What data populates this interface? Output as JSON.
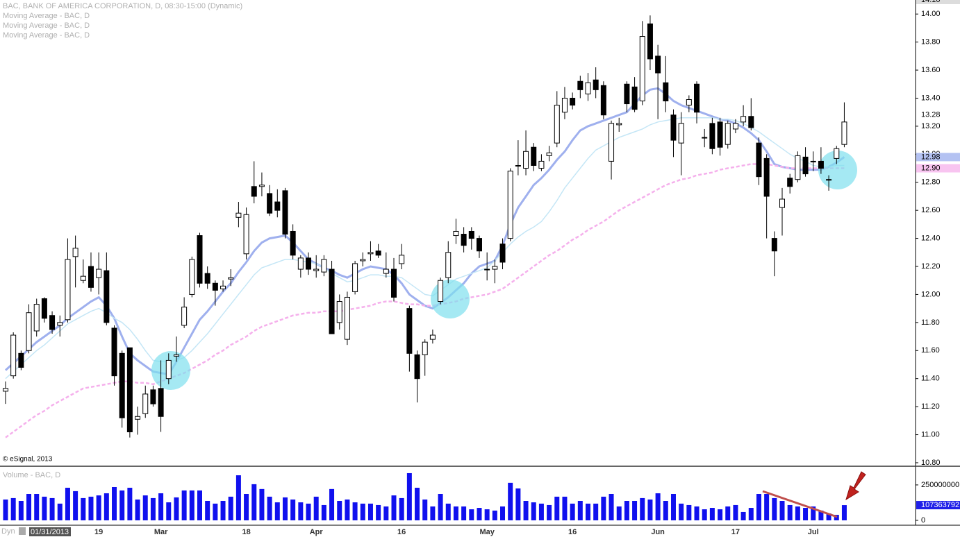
{
  "chart_data": [
    {
      "type": "candlestick",
      "title": "BAC, BANK OF AMERICA CORPORATION, D, 08:30-15:00 (Dynamic)",
      "source": "© eSignal, 2013",
      "x_prefix": "Dyn",
      "categories": [
        "01/31/2013",
        null,
        null,
        null,
        null,
        null,
        null,
        null,
        null,
        null,
        null,
        null,
        "19",
        null,
        null,
        null,
        null,
        null,
        null,
        null,
        "Mar",
        null,
        null,
        null,
        null,
        null,
        null,
        null,
        null,
        null,
        null,
        "18",
        null,
        null,
        null,
        null,
        null,
        null,
        null,
        null,
        "Apr",
        null,
        null,
        null,
        null,
        null,
        null,
        null,
        null,
        null,
        null,
        "16",
        null,
        null,
        null,
        null,
        null,
        null,
        null,
        null,
        null,
        null,
        "May",
        null,
        null,
        null,
        null,
        null,
        null,
        null,
        null,
        null,
        null,
        "16",
        null,
        null,
        null,
        null,
        null,
        null,
        null,
        null,
        null,
        null,
        "Jun",
        null,
        null,
        null,
        null,
        null,
        null,
        null,
        null,
        null,
        "17",
        null,
        null,
        null,
        null,
        null,
        null,
        null,
        null,
        null,
        "Jul",
        null,
        null,
        null,
        null
      ],
      "open": [
        11.31,
        11.42,
        11.58,
        11.6,
        11.74,
        11.97,
        11.85,
        11.78,
        11.82,
        12.27,
        12.1,
        12.2,
        12.12,
        12.17,
        11.76,
        11.58,
        11.62,
        11.11,
        11.15,
        11.32,
        11.33,
        11.4,
        11.56,
        11.78,
        12.0,
        12.42,
        12.15,
        12.08,
        12.04,
        12.11,
        12.55,
        12.29,
        12.77,
        12.77,
        12.72,
        12.66,
        12.74,
        12.45,
        12.18,
        12.26,
        12.17,
        12.16,
        12.18,
        11.8,
        11.68,
        12.02,
        12.24,
        12.29,
        12.31,
        12.15,
        12.18,
        12.22,
        11.9,
        11.57,
        11.57,
        11.68,
        11.95,
        12.12,
        12.42,
        12.43,
        12.45,
        12.4,
        12.18,
        12.18,
        12.36,
        12.4,
        12.92,
        12.9,
        13.05,
        12.9,
        12.99,
        13.08,
        13.3,
        13.4,
        13.52,
        13.43,
        13.53,
        13.49,
        12.95,
        13.21,
        13.5,
        13.48,
        13.38,
        13.93,
        13.7,
        13.51,
        13.28,
        13.08,
        13.35,
        13.5,
        13.12,
        13.22,
        13.23,
        13.07,
        13.18,
        13.23,
        13.27,
        13.08,
        12.97,
        12.4,
        12.62,
        12.83,
        12.82,
        12.98,
        12.95,
        12.95,
        12.82,
        12.97,
        13.07
      ],
      "high": [
        11.38,
        11.73,
        11.6,
        11.93,
        11.97,
        11.98,
        11.88,
        11.85,
        12.4,
        12.42,
        12.25,
        12.3,
        12.3,
        12.3,
        11.78,
        11.6,
        11.62,
        11.2,
        11.35,
        11.35,
        11.53,
        11.58,
        11.7,
        11.98,
        12.27,
        12.44,
        12.2,
        12.1,
        12.1,
        12.18,
        12.66,
        12.62,
        12.95,
        12.87,
        12.78,
        12.75,
        12.76,
        12.5,
        12.28,
        12.3,
        12.28,
        12.28,
        12.24,
        12.0,
        12.02,
        12.24,
        12.3,
        12.38,
        12.36,
        12.3,
        12.26,
        12.36,
        11.92,
        11.6,
        11.68,
        11.75,
        12.12,
        12.38,
        12.54,
        12.48,
        12.48,
        12.42,
        12.3,
        12.25,
        12.4,
        12.9,
        13.1,
        13.17,
        13.08,
        13.0,
        13.06,
        13.45,
        13.48,
        13.44,
        13.56,
        13.58,
        13.62,
        13.52,
        13.24,
        13.26,
        13.52,
        13.55,
        13.95,
        13.99,
        13.78,
        13.7,
        13.32,
        13.3,
        13.42,
        13.52,
        13.18,
        13.26,
        13.26,
        13.24,
        13.25,
        13.35,
        13.4,
        13.12,
        13.0,
        12.45,
        12.76,
        12.86,
        13.02,
        13.05,
        13.02,
        13.05,
        12.85,
        13.06,
        13.37
      ],
      "low": [
        11.22,
        11.4,
        11.46,
        11.58,
        11.7,
        11.8,
        11.72,
        11.7,
        11.8,
        12.05,
        12.08,
        12.02,
        12.0,
        11.78,
        11.35,
        11.05,
        10.98,
        11.0,
        11.12,
        11.2,
        11.02,
        11.36,
        11.52,
        11.76,
        11.98,
        12.05,
        12.04,
        11.92,
        12.02,
        12.06,
        12.48,
        12.25,
        12.65,
        12.7,
        12.56,
        12.55,
        12.4,
        12.25,
        12.12,
        12.14,
        12.12,
        12.13,
        11.72,
        11.75,
        11.64,
        12.0,
        12.2,
        12.24,
        12.26,
        12.12,
        11.95,
        12.18,
        11.45,
        11.23,
        11.42,
        11.65,
        11.93,
        12.08,
        12.36,
        12.3,
        12.32,
        12.26,
        12.1,
        12.08,
        12.18,
        12.38,
        12.85,
        12.85,
        12.88,
        12.88,
        12.95,
        13.05,
        13.25,
        13.32,
        13.4,
        13.38,
        13.4,
        13.25,
        12.82,
        13.16,
        13.3,
        13.3,
        13.35,
        13.6,
        13.25,
        13.3,
        12.98,
        12.85,
        13.3,
        13.22,
        13.05,
        13.0,
        12.99,
        13.04,
        13.15,
        13.2,
        13.17,
        12.78,
        12.4,
        12.13,
        12.42,
        12.72,
        12.8,
        12.84,
        12.88,
        12.86,
        12.74,
        12.93,
        13.05
      ],
      "close": [
        11.33,
        11.71,
        11.48,
        11.87,
        11.93,
        11.83,
        11.75,
        11.8,
        12.25,
        12.33,
        12.13,
        12.05,
        12.18,
        11.8,
        11.42,
        11.12,
        11.02,
        11.13,
        11.29,
        11.22,
        11.13,
        11.53,
        11.57,
        11.91,
        12.25,
        12.08,
        12.08,
        12.03,
        12.06,
        12.12,
        12.58,
        12.57,
        12.7,
        12.78,
        12.58,
        12.6,
        12.43,
        12.28,
        12.26,
        12.18,
        12.18,
        12.25,
        11.72,
        11.95,
        11.98,
        12.22,
        12.25,
        12.3,
        12.28,
        12.18,
        11.98,
        12.28,
        11.58,
        11.4,
        11.66,
        11.71,
        12.1,
        12.3,
        12.45,
        12.35,
        12.4,
        12.31,
        12.18,
        12.2,
        12.23,
        12.88,
        12.92,
        13.02,
        12.92,
        12.95,
        13.01,
        13.35,
        13.4,
        13.35,
        13.46,
        13.51,
        13.46,
        13.28,
        13.22,
        13.22,
        13.36,
        13.32,
        13.84,
        13.68,
        13.58,
        13.38,
        13.1,
        13.22,
        13.39,
        13.3,
        13.12,
        13.04,
        13.05,
        13.22,
        13.22,
        13.27,
        13.19,
        12.84,
        12.7,
        12.31,
        12.68,
        12.77,
        12.99,
        12.86,
        12.95,
        12.9,
        12.82,
        13.04,
        13.23
      ],
      "color_up": "#ffffff",
      "color_down": "#000000",
      "series": [
        {
          "name": "Moving Average - BAC, D",
          "color": "#9fb0ee",
          "values": [
            11.46,
            11.51,
            11.56,
            11.61,
            11.66,
            11.7,
            11.74,
            11.78,
            11.83,
            11.87,
            11.91,
            11.95,
            11.98,
            11.92,
            11.83,
            11.7,
            11.58,
            11.53,
            11.49,
            11.45,
            11.44,
            11.43,
            11.52,
            11.62,
            11.72,
            11.82,
            11.88,
            11.95,
            12.02,
            12.08,
            12.16,
            12.23,
            12.31,
            12.37,
            12.4,
            12.41,
            12.42,
            12.37,
            12.31,
            12.25,
            12.22,
            12.19,
            12.17,
            12.14,
            12.12,
            12.15,
            12.18,
            12.2,
            12.19,
            12.18,
            12.14,
            12.08,
            12.0,
            11.96,
            11.92,
            11.9,
            11.94,
            11.98,
            12.03,
            12.08,
            12.15,
            12.2,
            12.22,
            12.24,
            12.35,
            12.5,
            12.62,
            12.7,
            12.78,
            12.83,
            12.89,
            12.96,
            13.02,
            13.1,
            13.17,
            13.2,
            13.22,
            13.24,
            13.26,
            13.28,
            13.3,
            13.36,
            13.42,
            13.46,
            13.47,
            13.43,
            13.38,
            13.35,
            13.33,
            13.31,
            13.29,
            13.27,
            13.25,
            13.24,
            13.22,
            13.19,
            13.15,
            13.1,
            13.02,
            12.93,
            12.91,
            12.9,
            12.89,
            12.89,
            12.89,
            12.89,
            12.91,
            12.94,
            12.98
          ]
        },
        {
          "name": "Moving Average - BAC, D",
          "color": "#c4e6f6",
          "values": [
            11.4,
            11.45,
            11.5,
            11.55,
            11.6,
            11.64,
            11.69,
            11.74,
            11.79,
            11.82,
            11.85,
            11.88,
            11.9,
            11.87,
            11.83,
            11.8,
            11.75,
            11.68,
            11.6,
            11.53,
            11.52,
            11.52,
            11.53,
            11.55,
            11.6,
            11.66,
            11.72,
            11.79,
            11.86,
            11.93,
            12.0,
            12.07,
            12.14,
            12.19,
            12.21,
            12.23,
            12.25,
            12.25,
            12.24,
            12.23,
            12.22,
            12.19,
            12.15,
            12.12,
            12.09,
            12.1,
            12.12,
            12.14,
            12.14,
            12.13,
            12.13,
            12.12,
            12.08,
            12.04,
            12.0,
            11.99,
            12.03,
            12.07,
            12.11,
            12.13,
            12.15,
            12.17,
            12.19,
            12.24,
            12.3,
            12.36,
            12.41,
            12.45,
            12.48,
            12.52,
            12.59,
            12.67,
            12.76,
            12.83,
            12.9,
            12.97,
            13.03,
            13.06,
            13.09,
            13.12,
            13.14,
            13.16,
            13.18,
            13.21,
            13.23,
            13.24,
            13.25,
            13.26,
            13.26,
            13.26,
            13.26,
            13.26,
            13.25,
            13.25,
            13.24,
            13.22,
            13.19,
            13.16,
            13.12,
            13.08,
            13.04,
            13.0,
            12.97,
            12.95,
            12.92,
            12.91,
            12.91,
            12.92,
            12.92
          ]
        },
        {
          "name": "Moving Average - BAC, D",
          "color": "#f5b0ec",
          "dashed": true,
          "values": [
            10.98,
            11.02,
            11.06,
            11.1,
            11.14,
            11.17,
            11.21,
            11.24,
            11.27,
            11.3,
            11.33,
            11.34,
            11.35,
            11.36,
            11.37,
            11.38,
            11.38,
            11.37,
            11.37,
            11.36,
            11.38,
            11.4,
            11.42,
            11.44,
            11.47,
            11.5,
            11.53,
            11.57,
            11.6,
            11.64,
            11.67,
            11.7,
            11.74,
            11.77,
            11.79,
            11.81,
            11.83,
            11.85,
            11.86,
            11.87,
            11.87,
            11.88,
            11.88,
            11.88,
            11.89,
            11.9,
            11.91,
            11.92,
            11.94,
            11.95,
            11.95,
            11.94,
            11.93,
            11.93,
            11.92,
            11.92,
            11.93,
            11.94,
            11.95,
            11.97,
            11.98,
            11.99,
            12.0,
            12.02,
            12.04,
            12.08,
            12.12,
            12.16,
            12.2,
            12.24,
            12.28,
            12.31,
            12.35,
            12.39,
            12.42,
            12.46,
            12.49,
            12.52,
            12.56,
            12.6,
            12.63,
            12.66,
            12.69,
            12.72,
            12.75,
            12.78,
            12.8,
            12.82,
            12.83,
            12.85,
            12.86,
            12.87,
            12.89,
            12.9,
            12.91,
            12.92,
            12.93,
            12.93,
            12.93,
            12.92,
            12.91,
            12.9,
            12.9,
            12.9,
            12.9,
            12.9,
            12.9,
            12.9,
            12.9
          ]
        }
      ],
      "ylim": [
        10.78,
        14.1
      ],
      "yticks": [
        {
          "value": 10.8,
          "label": "10.80"
        },
        {
          "value": 11,
          "label": "11.00"
        },
        {
          "value": 11.2,
          "label": "11.20"
        },
        {
          "value": 11.4,
          "label": "11.40"
        },
        {
          "value": 11.6,
          "label": "11.60"
        },
        {
          "value": 11.8,
          "label": "11.80"
        },
        {
          "value": 12,
          "label": "12.00"
        },
        {
          "value": 12.2,
          "label": "12.20"
        },
        {
          "value": 12.4,
          "label": "12.40"
        },
        {
          "value": 12.6,
          "label": "12.60"
        },
        {
          "value": 12.8,
          "label": "12.80"
        },
        {
          "value": 13,
          "label": "13.00"
        },
        {
          "value": 13.2,
          "label": "13.20"
        },
        {
          "value": 13.4,
          "label": "13.40"
        },
        {
          "value": 13.6,
          "label": "13.60"
        },
        {
          "value": 13.8,
          "label": "13.80"
        },
        {
          "value": 14,
          "label": "14.00"
        }
      ],
      "markers": [
        {
          "value": 14.1,
          "label": "14.10",
          "color": "#dcdcdc"
        },
        {
          "value": 13.28,
          "label": "13.28"
        },
        {
          "value": 12.98,
          "label": "12.98",
          "color": "#b4c2f2"
        },
        {
          "value": 12.9,
          "label": "12.90",
          "color": "#f8c4f0"
        }
      ]
    },
    {
      "type": "bar",
      "title": "Volume - BAC, D",
      "color": "#1010ee",
      "values": [
        147000000,
        157000000,
        137000000,
        186000000,
        186000000,
        167000000,
        157000000,
        118000000,
        230000000,
        206000000,
        157000000,
        167000000,
        176000000,
        191000000,
        235000000,
        211000000,
        230000000,
        147000000,
        176000000,
        157000000,
        191000000,
        127000000,
        162000000,
        211000000,
        211000000,
        211000000,
        137000000,
        118000000,
        137000000,
        167000000,
        318000000,
        186000000,
        255000000,
        221000000,
        167000000,
        127000000,
        162000000,
        147000000,
        127000000,
        118000000,
        167000000,
        108000000,
        221000000,
        137000000,
        147000000,
        127000000,
        118000000,
        118000000,
        108000000,
        98000000,
        176000000,
        157000000,
        333000000,
        230000000,
        147000000,
        98000000,
        186000000,
        118000000,
        98000000,
        98000000,
        78000000,
        88000000,
        78000000,
        69000000,
        98000000,
        265000000,
        225000000,
        137000000,
        127000000,
        118000000,
        108000000,
        167000000,
        167000000,
        118000000,
        137000000,
        118000000,
        118000000,
        167000000,
        186000000,
        98000000,
        137000000,
        137000000,
        157000000,
        147000000,
        191000000,
        137000000,
        186000000,
        118000000,
        108000000,
        98000000,
        78000000,
        88000000,
        78000000,
        98000000,
        108000000,
        59000000,
        88000000,
        186000000,
        186000000,
        157000000,
        137000000,
        108000000,
        98000000,
        88000000,
        98000000,
        69000000,
        49000000,
        39000000,
        107363792
      ],
      "ylim": [
        0,
        372000000
      ],
      "yticks": [
        0,
        250000000
      ],
      "markers": [
        {
          "value": 107363792,
          "color": "#2020e8"
        }
      ]
    }
  ]
}
